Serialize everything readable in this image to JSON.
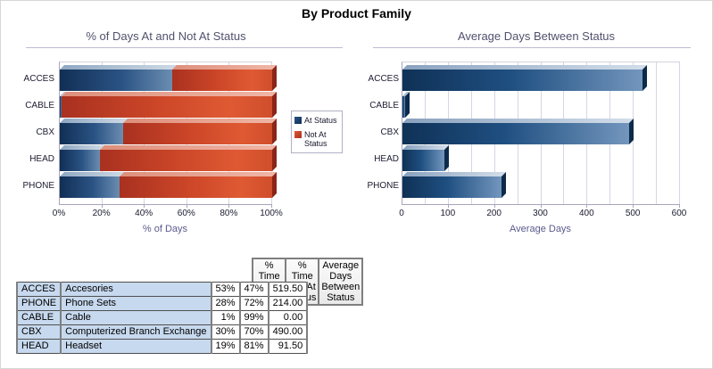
{
  "page_title": "By Product Family",
  "chart_data": [
    {
      "type": "bar",
      "orientation": "horizontal",
      "stacked": true,
      "title": "% of Days At and Not At Status",
      "xlabel": "% of Days",
      "categories": [
        "ACCES",
        "CABLE",
        "CBX",
        "HEAD",
        "PHONE"
      ],
      "series": [
        {
          "name": "At Status",
          "color": "#1f4e79",
          "values": [
            53,
            1,
            30,
            19,
            28
          ]
        },
        {
          "name": "Not At Status",
          "color": "#c0392b",
          "values": [
            47,
            99,
            70,
            81,
            72
          ]
        }
      ],
      "xlim": [
        0,
        100
      ],
      "x_tick_labels": [
        "0%",
        "20%",
        "40%",
        "60%",
        "80%",
        "100%"
      ],
      "x_tick_values": [
        0,
        20,
        40,
        60,
        80,
        100
      ],
      "gridline_step": 20,
      "grid": true,
      "legend_position": "right"
    },
    {
      "type": "bar",
      "orientation": "horizontal",
      "stacked": false,
      "title": "Average Days Between Status",
      "xlabel": "Average Days",
      "categories": [
        "ACCES",
        "CABLE",
        "CBX",
        "HEAD",
        "PHONE"
      ],
      "values": [
        519.5,
        0,
        490,
        91.5,
        214
      ],
      "bar_color": "#1f4e79",
      "xlim": [
        0,
        600
      ],
      "x_tick_labels": [
        "0",
        "100",
        "200",
        "300",
        "400",
        "500",
        "600"
      ],
      "x_tick_values": [
        0,
        100,
        200,
        300,
        400,
        500,
        600
      ],
      "gridline_step": 50,
      "grid": true,
      "legend_position": "none"
    }
  ],
  "table": {
    "headers": [
      "% Time At Status",
      "% Time Not At Status",
      "Average Days Between Status"
    ],
    "rows": [
      {
        "code": "ACCES",
        "name": "Accesories",
        "time_at": "53%",
        "time_not_at": "47%",
        "avg_days": "519.50"
      },
      {
        "code": "PHONE",
        "name": "Phone Sets",
        "time_at": "28%",
        "time_not_at": "72%",
        "avg_days": "214.00"
      },
      {
        "code": "CABLE",
        "name": "Cable",
        "time_at": "1%",
        "time_not_at": "99%",
        "avg_days": "0.00"
      },
      {
        "code": "CBX",
        "name": "Computerized Branch Exchange",
        "time_at": "30%",
        "time_not_at": "70%",
        "avg_days": "490.00"
      },
      {
        "code": "HEAD",
        "name": "Headset",
        "time_at": "19%",
        "time_not_at": "81%",
        "avg_days": "91.50"
      }
    ]
  }
}
